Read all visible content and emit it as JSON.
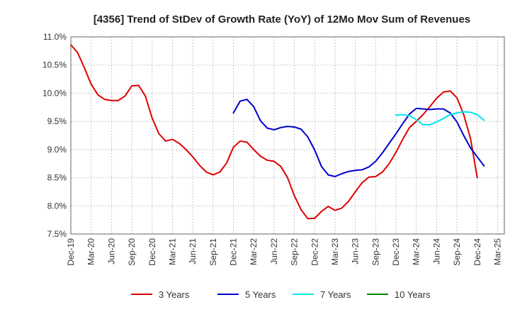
{
  "chart_data": {
    "type": "line",
    "title": "[4356]  Trend of StDev of Growth Rate (YoY) of 12Mo Mov Sum of Revenues",
    "xlabel": "",
    "ylabel": "",
    "ylim": [
      7.5,
      11.0
    ],
    "yticks": [
      "7.5%",
      "8.0%",
      "8.5%",
      "9.0%",
      "9.5%",
      "10.0%",
      "10.5%",
      "11.0%"
    ],
    "yticks_values": [
      7.5,
      8.0,
      8.5,
      9.0,
      9.5,
      10.0,
      10.5,
      11.0
    ],
    "xticks": [
      "Dec-19",
      "Mar-20",
      "Jun-20",
      "Sep-20",
      "Dec-20",
      "Mar-21",
      "Jun-21",
      "Sep-21",
      "Dec-21",
      "Mar-22",
      "Jun-22",
      "Sep-22",
      "Dec-22",
      "Mar-23",
      "Jun-23",
      "Sep-23",
      "Dec-23",
      "Mar-24",
      "Jun-24",
      "Sep-24",
      "Dec-24",
      "Mar-25"
    ],
    "x_start": "Dec-19",
    "x_count_months": 64,
    "grid": true,
    "legend_position": "bottom",
    "series": [
      {
        "name": "3 Years",
        "color": "#dd0000",
        "start_index": 0,
        "values": [
          10.86,
          10.72,
          10.45,
          10.16,
          9.97,
          9.89,
          9.87,
          9.87,
          9.95,
          10.13,
          10.14,
          9.95,
          9.56,
          9.28,
          9.15,
          9.18,
          9.11,
          9.0,
          8.87,
          8.72,
          8.6,
          8.55,
          8.6,
          8.76,
          9.04,
          9.15,
          9.13,
          9.0,
          8.88,
          8.81,
          8.79,
          8.7,
          8.5,
          8.18,
          7.93,
          7.77,
          7.78,
          7.9,
          7.99,
          7.92,
          7.96,
          8.08,
          8.25,
          8.41,
          8.51,
          8.52,
          8.6,
          8.75,
          8.95,
          9.18,
          9.39,
          9.5,
          9.62,
          9.76,
          9.91,
          10.02,
          10.04,
          9.92,
          9.62,
          9.2,
          8.5
        ]
      },
      {
        "name": "5 Years",
        "color": "#0000cc",
        "start_index": 24,
        "values": [
          9.65,
          9.86,
          9.89,
          9.76,
          9.51,
          9.38,
          9.35,
          9.39,
          9.41,
          9.4,
          9.36,
          9.22,
          8.99,
          8.7,
          8.55,
          8.52,
          8.57,
          8.61,
          8.63,
          8.64,
          8.69,
          8.79,
          8.94,
          9.11,
          9.28,
          9.46,
          9.63,
          9.73,
          9.72,
          9.71,
          9.72,
          9.72,
          9.65,
          9.49,
          9.25,
          9.03,
          8.87,
          8.71
        ]
      },
      {
        "name": "7 Years",
        "color": "#00e5ee",
        "start_index": 48,
        "values": [
          9.61,
          9.62,
          9.6,
          9.53,
          9.44,
          9.44,
          9.49,
          9.55,
          9.62,
          9.65,
          9.67,
          9.66,
          9.62,
          9.52
        ]
      },
      {
        "name": "10 Years",
        "color": "#008800",
        "start_index": 0,
        "values": []
      }
    ]
  }
}
